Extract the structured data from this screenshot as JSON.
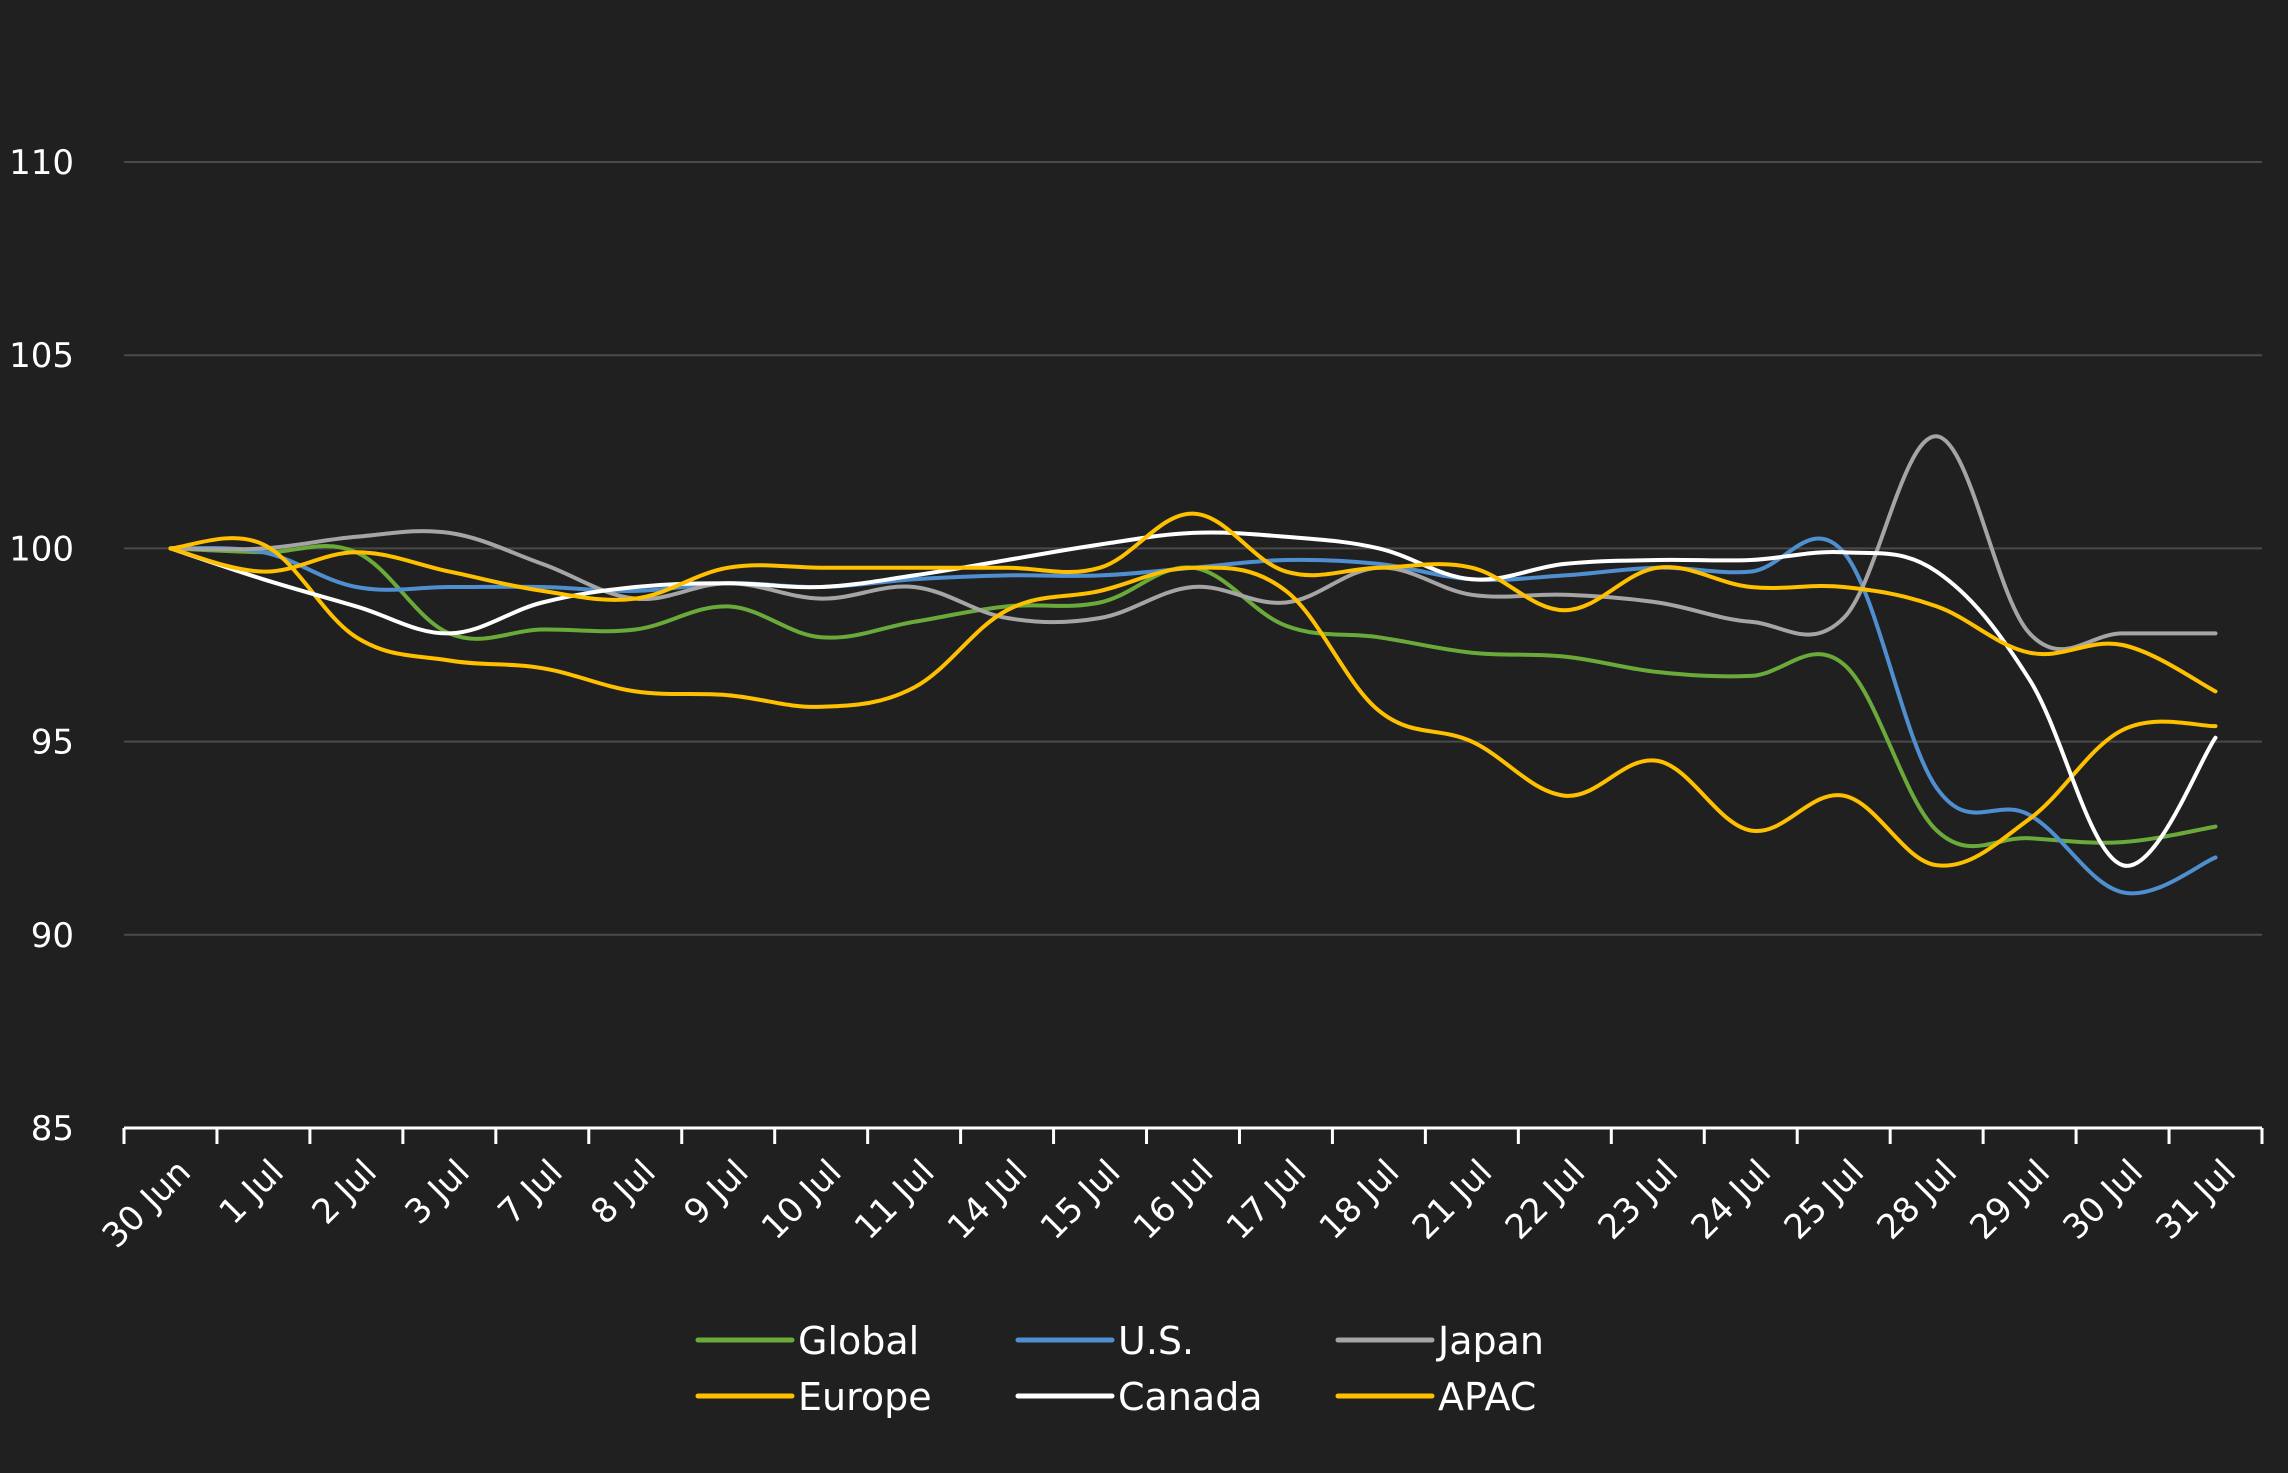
{
  "chart_data": {
    "type": "line",
    "title": "",
    "xlabel": "",
    "ylabel": "",
    "ylim": [
      85,
      110
    ],
    "yticks": [
      85,
      90,
      95,
      100,
      105,
      110
    ],
    "grid": true,
    "legend_position": "bottom",
    "categories": [
      "30 Jun",
      "1 Jul",
      "2 Jul",
      "3 Jul",
      "7 Jul",
      "8 Jul",
      "9 Jul",
      "10 Jul",
      "11 Jul",
      "14 Jul",
      "15 Jul",
      "16 Jul",
      "17 Jul",
      "18 Jul",
      "21 Jul",
      "22 Jul",
      "23 Jul",
      "24 Jul",
      "25 Jul",
      "28 Jul",
      "29 Jul",
      "30 Jul",
      "31 Jul"
    ],
    "series": [
      {
        "name": "Global",
        "color": "#6aaa3a",
        "values": [
          100,
          99.9,
          99.9,
          97.8,
          97.9,
          97.9,
          98.5,
          97.7,
          98.1,
          98.5,
          98.6,
          99.5,
          98.0,
          97.7,
          97.3,
          97.2,
          96.8,
          96.7,
          97.0,
          92.7,
          92.5,
          92.4,
          92.8
        ]
      },
      {
        "name": "U.S.",
        "color": "#4f8fcf",
        "values": [
          100,
          99.9,
          99.0,
          99.0,
          99.0,
          98.9,
          99.1,
          99.0,
          99.2,
          99.3,
          99.3,
          99.5,
          99.7,
          99.6,
          99.2,
          99.3,
          99.5,
          99.4,
          99.9,
          93.8,
          93.1,
          91.1,
          92.0
        ]
      },
      {
        "name": "Japan",
        "color": "#a5a5a5",
        "values": [
          100,
          100.0,
          100.3,
          100.4,
          99.6,
          98.7,
          99.1,
          98.7,
          99.0,
          98.2,
          98.2,
          99.0,
          98.6,
          99.5,
          98.8,
          98.8,
          98.6,
          98.1,
          98.2,
          102.9,
          97.8,
          97.8,
          97.8
        ]
      },
      {
        "name": "Europe",
        "color": "#ffc000",
        "values": [
          100,
          100.1,
          97.7,
          97.1,
          96.9,
          96.3,
          96.2,
          95.9,
          96.4,
          98.4,
          98.9,
          99.5,
          98.9,
          95.8,
          95.0,
          93.6,
          94.5,
          92.7,
          93.6,
          91.8,
          93.0,
          95.3,
          95.4
        ]
      },
      {
        "name": "Canada",
        "color": "#ffffff",
        "values": [
          100,
          99.2,
          98.5,
          97.8,
          98.6,
          99.0,
          99.1,
          99.0,
          99.3,
          99.7,
          100.1,
          100.4,
          100.3,
          100.0,
          99.2,
          99.6,
          99.7,
          99.7,
          99.9,
          99.4,
          96.6,
          91.8,
          95.1
        ]
      },
      {
        "name": "APAC",
        "color": "#ffc000",
        "values": [
          100,
          99.4,
          99.9,
          99.4,
          98.9,
          98.7,
          99.5,
          99.5,
          99.5,
          99.5,
          99.5,
          100.9,
          99.4,
          99.5,
          99.5,
          98.4,
          99.5,
          99.0,
          99.0,
          98.5,
          97.3,
          97.5,
          96.3
        ]
      }
    ]
  }
}
